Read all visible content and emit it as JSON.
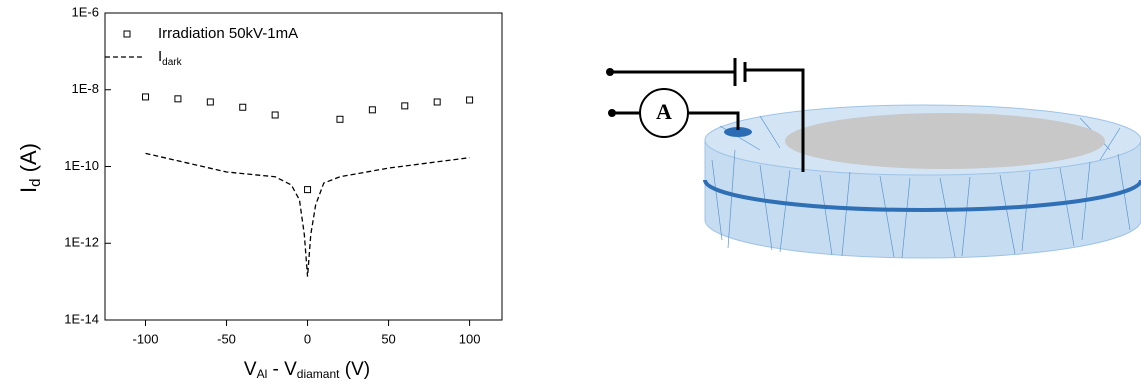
{
  "chart_data": {
    "type": "scatter-line",
    "x_label": {
      "main": "V",
      "sub": "Al",
      "mid": " - V",
      "sub2": "diamant",
      "rest": " (V)"
    },
    "y_label": {
      "main": "I",
      "sub": "d",
      "rest": " (A)"
    },
    "log_y": true,
    "xlim": [
      -125,
      120
    ],
    "ylim": [
      1e-14,
      1e-06
    ],
    "xticks": [
      -100,
      -50,
      0,
      50,
      100
    ],
    "yticks": [
      {
        "value": 1e-14,
        "label": "1E-14"
      },
      {
        "value": 1e-12,
        "label": "1E-12"
      },
      {
        "value": 1e-10,
        "label": "1E-10"
      },
      {
        "value": 1e-08,
        "label": "1E-8"
      },
      {
        "value": 1e-06,
        "label": "1E-6"
      }
    ],
    "series": [
      {
        "name": "Irradiation 50kV-1mA",
        "kind": "scatter",
        "color": "#000000",
        "x": [
          -100,
          -80,
          -60,
          -40,
          -20,
          0,
          20,
          40,
          60,
          80,
          100
        ],
        "values": [
          6.5e-09,
          5.8e-09,
          4.8e-09,
          3.5e-09,
          2.2e-09,
          2.5e-11,
          1.7e-09,
          3e-09,
          3.8e-09,
          4.8e-09,
          5.4e-09
        ]
      },
      {
        "name": "I",
        "name_sub": "dark",
        "kind": "dashed-line",
        "color": "#000000",
        "x": [
          -100,
          -50,
          -20,
          -10,
          -5,
          -2,
          0,
          2,
          5,
          10,
          20,
          50,
          100
        ],
        "values": [
          2.2e-10,
          7.2e-11,
          5.4e-11,
          3.3e-11,
          1.35e-11,
          1.7e-12,
          1.35e-13,
          1.7e-12,
          1e-11,
          3.7e-11,
          5.4e-11,
          9.1e-11,
          1.7e-10
        ]
      }
    ]
  },
  "diagram": {
    "ammeter_label": "A"
  }
}
